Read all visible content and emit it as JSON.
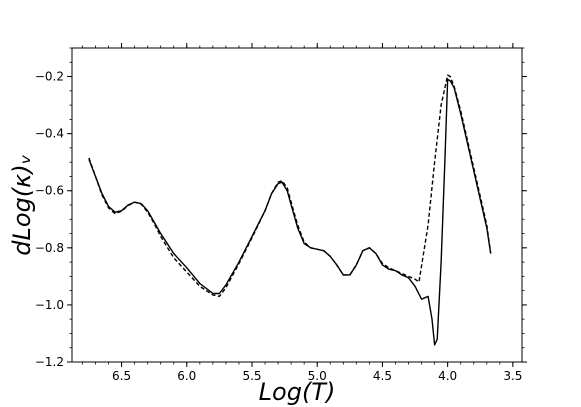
{
  "chart_data": {
    "type": "line",
    "title": "",
    "xlabel": "Log(T)",
    "ylabel": "dLog(κ)ᵥ",
    "xlim": [
      6.88,
      3.43
    ],
    "ylim": [
      -1.2,
      -0.1
    ],
    "x_reversed": true,
    "x_ticks": [
      6.5,
      6.0,
      5.5,
      5.0,
      4.5,
      4.0,
      3.5
    ],
    "x_tick_labels": [
      "6.5",
      "6.0",
      "5.5",
      "5.0",
      "4.5",
      "4.0",
      "3.5"
    ],
    "y_ticks": [
      -1.2,
      -1.0,
      -0.8,
      -0.6,
      -0.4,
      -0.2
    ],
    "y_tick_labels": [
      "−1.2",
      "−1.0",
      "−0.8",
      "−0.6",
      "−0.4",
      "−0.2"
    ],
    "grid": false,
    "legend": "none",
    "series": [
      {
        "style": "solid",
        "color": "#000000",
        "x": [
          6.75,
          6.7,
          6.65,
          6.6,
          6.55,
          6.5,
          6.45,
          6.4,
          6.35,
          6.3,
          6.25,
          6.2,
          6.1,
          6.0,
          5.9,
          5.8,
          5.75,
          5.7,
          5.6,
          5.5,
          5.4,
          5.35,
          5.3,
          5.27,
          5.23,
          5.2,
          5.15,
          5.1,
          5.05,
          5.0,
          4.95,
          4.9,
          4.85,
          4.8,
          4.75,
          4.7,
          4.65,
          4.6,
          4.55,
          4.5,
          4.45,
          4.4,
          4.35,
          4.3,
          4.25,
          4.2,
          4.15,
          4.12,
          4.1,
          4.08,
          4.05,
          4.02,
          4.0,
          3.98,
          3.95,
          3.9,
          3.85,
          3.8,
          3.75,
          3.7,
          3.67
        ],
        "y": [
          -0.49,
          -0.55,
          -0.61,
          -0.655,
          -0.675,
          -0.67,
          -0.65,
          -0.64,
          -0.645,
          -0.67,
          -0.71,
          -0.75,
          -0.82,
          -0.87,
          -0.925,
          -0.96,
          -0.96,
          -0.93,
          -0.85,
          -0.76,
          -0.67,
          -0.61,
          -0.575,
          -0.57,
          -0.6,
          -0.65,
          -0.73,
          -0.785,
          -0.8,
          -0.805,
          -0.81,
          -0.83,
          -0.86,
          -0.895,
          -0.895,
          -0.86,
          -0.81,
          -0.8,
          -0.82,
          -0.86,
          -0.875,
          -0.88,
          -0.895,
          -0.905,
          -0.935,
          -0.98,
          -0.97,
          -1.05,
          -1.14,
          -1.12,
          -0.85,
          -0.48,
          -0.21,
          -0.215,
          -0.24,
          -0.33,
          -0.43,
          -0.53,
          -0.63,
          -0.73,
          -0.82
        ]
      },
      {
        "style": "dashed",
        "color": "#000000",
        "x": [
          6.75,
          6.7,
          6.65,
          6.6,
          6.55,
          6.5,
          6.45,
          6.4,
          6.35,
          6.3,
          6.25,
          6.2,
          6.1,
          6.0,
          5.9,
          5.8,
          5.75,
          5.7,
          5.6,
          5.5,
          5.4,
          5.35,
          5.3,
          5.27,
          5.23,
          5.2,
          5.15,
          5.1,
          5.05,
          5.0,
          4.95,
          4.9,
          4.85,
          4.8,
          4.75,
          4.7,
          4.65,
          4.6,
          4.55,
          4.5,
          4.45,
          4.4,
          4.35,
          4.3,
          4.25,
          4.22,
          4.15,
          4.1,
          4.05,
          4.0,
          3.98,
          3.95,
          3.9,
          3.85,
          3.8,
          3.75,
          3.7,
          3.67
        ],
        "y": [
          -0.485,
          -0.55,
          -0.615,
          -0.66,
          -0.68,
          -0.672,
          -0.652,
          -0.64,
          -0.647,
          -0.675,
          -0.715,
          -0.76,
          -0.835,
          -0.885,
          -0.935,
          -0.965,
          -0.97,
          -0.94,
          -0.855,
          -0.765,
          -0.67,
          -0.61,
          -0.57,
          -0.565,
          -0.59,
          -0.64,
          -0.72,
          -0.78,
          -0.8,
          -0.805,
          -0.81,
          -0.83,
          -0.86,
          -0.895,
          -0.895,
          -0.86,
          -0.81,
          -0.8,
          -0.82,
          -0.855,
          -0.87,
          -0.88,
          -0.89,
          -0.9,
          -0.91,
          -0.92,
          -0.72,
          -0.5,
          -0.3,
          -0.195,
          -0.2,
          -0.235,
          -0.32,
          -0.42,
          -0.52,
          -0.62,
          -0.72,
          -0.82
        ]
      }
    ]
  }
}
